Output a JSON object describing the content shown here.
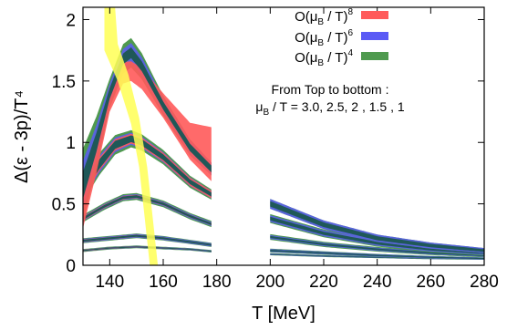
{
  "chart_data": {
    "type": "area",
    "title": "",
    "xlabel": "T [MeV]",
    "ylabel": "Δ(ε - 3p)/T⁴",
    "xlim": [
      130,
      280
    ],
    "ylim": [
      0,
      2.1
    ],
    "xticks": [
      140,
      160,
      180,
      200,
      220,
      240,
      260,
      280
    ],
    "yticks": [
      0,
      0.5,
      1,
      1.5,
      2
    ],
    "xtick_labels": [
      "140",
      "160",
      "180",
      "200",
      "220",
      "240",
      "260",
      "280"
    ],
    "ytick_labels": [
      "0",
      "0.5",
      "1",
      "1.5",
      "2"
    ],
    "grid": false,
    "legend_position": "top-right",
    "legend": [
      {
        "name_main": "O(μ",
        "name_sub": "B",
        "name_mid": " / T)",
        "name_sup": "8",
        "color": "#ff5a5a"
      },
      {
        "name_main": "O(μ",
        "name_sub": "B",
        "name_mid": " / T)",
        "name_sup": "6",
        "color": "#5a5af5"
      },
      {
        "name_main": "O(μ",
        "name_sub": "B",
        "name_mid": " / T)",
        "name_sup": "4",
        "color": "#4f9a4f"
      }
    ],
    "annotation": {
      "line1": "From Top to bottom :",
      "line2_a": "μ",
      "line2_sub": "B",
      "line2_b": " / T = 3.0, 2.5, 2 , 1.5 , 1"
    },
    "yellow_band": {
      "color": "#ffff55",
      "left": [
        [
          138,
          2.1
        ],
        [
          138,
          1.75
        ],
        [
          143,
          1.5
        ],
        [
          148,
          1.15
        ],
        [
          151,
          0.8
        ],
        [
          153,
          0.4
        ],
        [
          155,
          0.0
        ]
      ],
      "right": [
        [
          142,
          2.1
        ],
        [
          143,
          1.8
        ],
        [
          147,
          1.55
        ],
        [
          151,
          1.2
        ],
        [
          154,
          0.8
        ],
        [
          156,
          0.4
        ],
        [
          158,
          0.0
        ]
      ]
    },
    "series": [
      {
        "mu_over_T": 3.0,
        "colors": {
          "o8": "#ff5a5a",
          "o6": "#5a5af5",
          "o4": "#4f9a4f",
          "dark": "#1f5858"
        },
        "center": [
          [
            130,
            0.65
          ],
          [
            135,
            1.0
          ],
          [
            140,
            1.4
          ],
          [
            145,
            1.68
          ],
          [
            148,
            1.73
          ],
          [
            152,
            1.62
          ],
          [
            160,
            1.3
          ],
          [
            170,
            0.96
          ],
          [
            180,
            0.74
          ],
          [
            200,
            0.5
          ],
          [
            220,
            0.33
          ],
          [
            240,
            0.22
          ],
          [
            260,
            0.16
          ],
          [
            280,
            0.12
          ]
        ],
        "o4_half": [
          [
            130,
            0.3
          ],
          [
            140,
            0.12
          ],
          [
            148,
            0.12
          ],
          [
            160,
            0.08
          ],
          [
            180,
            0.05
          ],
          [
            200,
            0.04
          ],
          [
            240,
            0.03
          ],
          [
            280,
            0.02
          ]
        ],
        "o6_half": [
          [
            130,
            0.2
          ],
          [
            140,
            0.08
          ],
          [
            148,
            0.08
          ],
          [
            160,
            0.06
          ],
          [
            180,
            0.05
          ],
          [
            200,
            0.04
          ],
          [
            240,
            0.03
          ],
          [
            280,
            0.02
          ]
        ],
        "o8_offset": [
          [
            130,
            -0.2
          ],
          [
            140,
            -0.05
          ],
          [
            148,
            -0.15
          ],
          [
            160,
            0.0
          ],
          [
            170,
            0.05
          ],
          [
            178,
            0.12
          ]
        ],
        "o8_half": [
          [
            130,
            0.15
          ],
          [
            140,
            0.1
          ],
          [
            148,
            0.08
          ],
          [
            160,
            0.1
          ],
          [
            170,
            0.15
          ],
          [
            178,
            0.22
          ]
        ],
        "o8_end": 178,
        "gap": [
          178,
          200
        ]
      },
      {
        "mu_over_T": 2.5,
        "colors": {
          "o8": "#ff5a5a",
          "o6": "#5a5af5",
          "o4": "#4f9a4f",
          "dark": "#1f5858"
        },
        "center": [
          [
            130,
            0.62
          ],
          [
            136,
            0.82
          ],
          [
            142,
            0.98
          ],
          [
            148,
            1.03
          ],
          [
            152,
            1.0
          ],
          [
            160,
            0.88
          ],
          [
            170,
            0.68
          ],
          [
            180,
            0.55
          ],
          [
            200,
            0.38
          ],
          [
            220,
            0.26
          ],
          [
            240,
            0.18
          ],
          [
            260,
            0.13
          ],
          [
            280,
            0.1
          ]
        ],
        "o4_half": [
          [
            130,
            0.1
          ],
          [
            148,
            0.07
          ],
          [
            180,
            0.04
          ],
          [
            280,
            0.02
          ]
        ],
        "o6_half": [
          [
            130,
            0.08
          ],
          [
            148,
            0.05
          ],
          [
            180,
            0.03
          ],
          [
            280,
            0.015
          ]
        ],
        "o8_offset": [
          [
            130,
            0.0
          ],
          [
            148,
            0.0
          ],
          [
            178,
            0.0
          ]
        ],
        "o8_half": [
          [
            130,
            0.06
          ],
          [
            148,
            0.04
          ],
          [
            178,
            0.03
          ]
        ],
        "o8_end": 178,
        "gap": [
          178,
          200
        ]
      },
      {
        "mu_over_T": 2.0,
        "colors": {
          "o8": "#ff5a5a",
          "o6": "#5a5af5",
          "o4": "#4f9a4f",
          "dark": "#1f5858"
        },
        "center": [
          [
            130,
            0.38
          ],
          [
            138,
            0.48
          ],
          [
            145,
            0.55
          ],
          [
            150,
            0.56
          ],
          [
            160,
            0.5
          ],
          [
            170,
            0.4
          ],
          [
            180,
            0.32
          ],
          [
            200,
            0.23
          ],
          [
            220,
            0.17
          ],
          [
            240,
            0.13
          ],
          [
            260,
            0.1
          ],
          [
            280,
            0.08
          ]
        ],
        "o4_half": [
          [
            130,
            0.03
          ],
          [
            280,
            0.015
          ]
        ],
        "o6_half": [
          [
            130,
            0.02
          ],
          [
            280,
            0.01
          ]
        ],
        "o8_offset": [
          [
            130,
            0.0
          ],
          [
            178,
            0.0
          ]
        ],
        "o8_half": [
          [
            130,
            0.015
          ],
          [
            178,
            0.01
          ]
        ],
        "o8_end": 178,
        "gap": [
          178,
          200
        ]
      },
      {
        "mu_over_T": 1.5,
        "colors": {
          "o8": "#ff5a5a",
          "o6": "#5a5af5",
          "o4": "#4f9a4f",
          "dark": "#1f5858"
        },
        "center": [
          [
            130,
            0.2
          ],
          [
            140,
            0.22
          ],
          [
            150,
            0.24
          ],
          [
            160,
            0.22
          ],
          [
            170,
            0.19
          ],
          [
            180,
            0.16
          ],
          [
            200,
            0.12
          ],
          [
            220,
            0.1
          ],
          [
            240,
            0.08
          ],
          [
            260,
            0.065
          ],
          [
            280,
            0.055
          ]
        ],
        "o4_half": [
          [
            130,
            0.02
          ],
          [
            280,
            0.01
          ]
        ],
        "o6_half": [
          [
            130,
            0.015
          ],
          [
            280,
            0.008
          ]
        ],
        "o8_offset": [
          [
            130,
            0.0
          ],
          [
            178,
            0.0
          ]
        ],
        "o8_half": [
          [
            130,
            0.01
          ],
          [
            178,
            0.006
          ]
        ],
        "o8_end": 178,
        "gap": [
          178,
          200
        ]
      },
      {
        "mu_over_T": 1.0,
        "colors": {
          "o8": "#ff5a5a",
          "o6": "#5a5af5",
          "o4": "#4f9a4f",
          "dark": "#1f5858"
        },
        "center": [
          [
            130,
            0.12
          ],
          [
            140,
            0.14
          ],
          [
            150,
            0.15
          ],
          [
            160,
            0.14
          ],
          [
            170,
            0.13
          ],
          [
            180,
            0.11
          ],
          [
            200,
            0.09
          ],
          [
            220,
            0.075
          ],
          [
            240,
            0.065
          ],
          [
            260,
            0.055
          ],
          [
            280,
            0.05
          ]
        ],
        "o4_half": [
          [
            130,
            0.012
          ],
          [
            280,
            0.005
          ]
        ],
        "o6_half": [
          [
            130,
            0.008
          ],
          [
            280,
            0.004
          ]
        ],
        "o8_offset": [
          [
            130,
            0.0
          ],
          [
            178,
            0.0
          ]
        ],
        "o8_half": [
          [
            130,
            0.006
          ],
          [
            178,
            0.003
          ]
        ],
        "o8_end": 178,
        "gap": [
          178,
          200
        ]
      }
    ]
  }
}
